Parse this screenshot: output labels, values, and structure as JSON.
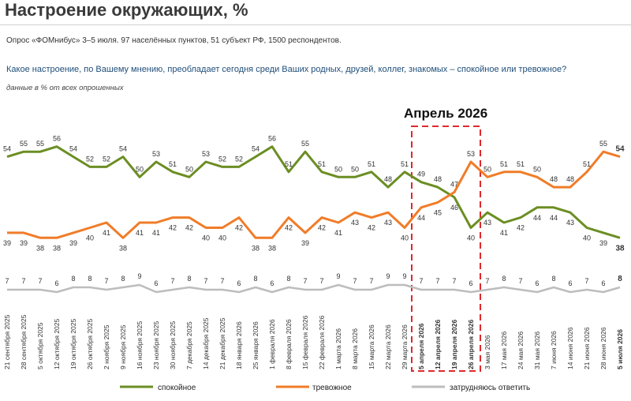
{
  "page": {
    "title": "Настроение окружающих, %",
    "subtitle": "Опрос «ФОМнибус» 3–5 июля. 97 населённых пунктов, 51 субъект РФ, 1500 респондентов.",
    "question": "Какое настроение, по Вашему мнению, преобладает сегодня среди Ваших родных, друзей, коллег, знакомых – спокойное или тревожное?",
    "note": "данные в % от всех опрошенных",
    "highlight_label": "Апрель 2026"
  },
  "colors": {
    "calm": "#6b8e23",
    "anxious": "#f07c28",
    "dontknow": "#bdbdbd",
    "highlight": "#e0282a",
    "question": "#1f4e79"
  },
  "chart_data": {
    "type": "line",
    "highlight_range": [
      "5 апреля 2026",
      "26 апреля 2026"
    ],
    "x": [
      "21 сентября 2025",
      "28 сентября 2025",
      "5 октября 2025",
      "12 октября 2025",
      "19 октября 2025",
      "26 октября 2025",
      "2 ноября 2025",
      "9 ноября 2025",
      "16 ноября 2025",
      "23 ноября 2025",
      "30 ноября 2025",
      "7 декабря 2025",
      "14 декабря 2025",
      "21 декабря 2025",
      "18 января 2026",
      "25 января 2026",
      "1 февраля 2026",
      "8 февраля 2026",
      "15 февраля 2026",
      "22 февраля 2026",
      "1 марта 2026",
      "8 марта 2026",
      "15 марта 2026",
      "22 марта 2026",
      "29 марта 2026",
      "5 апреля 2026",
      "12 апреля 2026",
      "19 апреля 2026",
      "26 апреля 2026",
      "3 мая 2026",
      "17 мая 2026",
      "24 мая 2026",
      "31 мая 2026",
      "7 июня 2026",
      "14 июня 2026",
      "21 июня 2026",
      "28 июня 2026",
      "5 июля 2026"
    ],
    "series": [
      {
        "name": "спокойное",
        "key": "calm",
        "values": [
          54,
          55,
          55,
          56,
          54,
          52,
          52,
          54,
          50,
          53,
          51,
          50,
          53,
          52,
          52,
          54,
          56,
          51,
          55,
          51,
          50,
          50,
          51,
          48,
          51,
          49,
          48,
          46,
          40,
          43,
          41,
          42,
          44,
          44,
          43,
          40,
          39,
          38
        ]
      },
      {
        "name": "тревожное",
        "key": "anxious",
        "values": [
          39,
          39,
          38,
          38,
          39,
          40,
          41,
          38,
          41,
          41,
          42,
          42,
          40,
          40,
          42,
          38,
          38,
          42,
          39,
          42,
          41,
          43,
          42,
          43,
          40,
          44,
          45,
          47,
          53,
          50,
          51,
          51,
          50,
          48,
          48,
          51,
          55,
          54
        ]
      },
      {
        "name": "затрудняюсь ответить",
        "key": "dontknow",
        "values": [
          7,
          7,
          7,
          6,
          8,
          8,
          7,
          8,
          9,
          6,
          7,
          8,
          7,
          7,
          6,
          8,
          6,
          8,
          7,
          7,
          9,
          7,
          7,
          9,
          9,
          7,
          7,
          7,
          6,
          7,
          8,
          7,
          6,
          8,
          6,
          7,
          6,
          8
        ]
      }
    ],
    "legend_position": "bottom",
    "grid": false
  }
}
